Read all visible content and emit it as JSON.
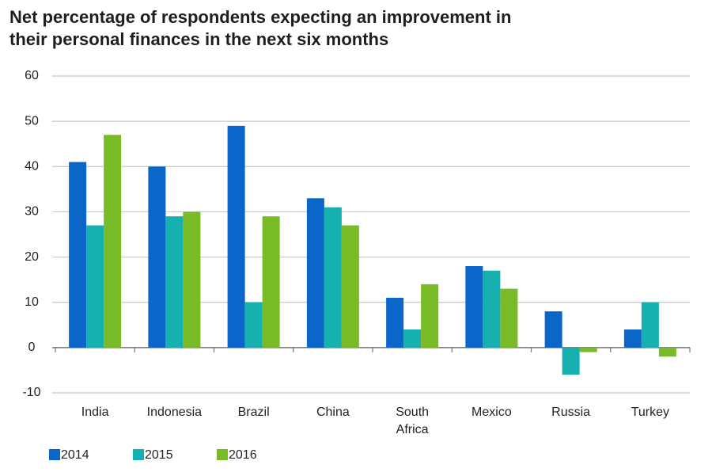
{
  "chart_data": {
    "type": "bar",
    "title": [
      "Net percentage of respondents expecting an improvement in",
      "their personal finances in the next six months"
    ],
    "categories": [
      "India",
      "Indonesia",
      "Brazil",
      "China",
      "South Africa",
      "Mexico",
      "Russia",
      "Turkey"
    ],
    "series": [
      {
        "name": "2014",
        "color": "#0a66c8",
        "values": [
          41,
          40,
          49,
          33,
          11,
          18,
          8,
          4
        ]
      },
      {
        "name": "2015",
        "color": "#17b0b0",
        "values": [
          27,
          29,
          10,
          31,
          4,
          17,
          -6,
          10
        ]
      },
      {
        "name": "2016",
        "color": "#78bb26",
        "values": [
          47,
          30,
          29,
          27,
          14,
          13,
          -1,
          -2
        ]
      }
    ],
    "ylim": [
      -10,
      60
    ],
    "yticks": [
      -10,
      0,
      10,
      20,
      30,
      40,
      50,
      60
    ],
    "grid": true,
    "legend": "bottom"
  }
}
